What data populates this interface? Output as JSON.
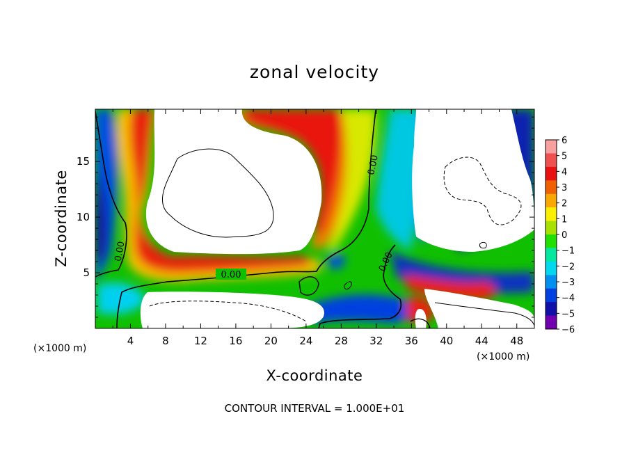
{
  "chart_data": {
    "type": "heatmap",
    "title": "zonal velocity",
    "xlabel": "X-coordinate",
    "ylabel": "Z-coordinate",
    "x_unit": "(×1000 m)",
    "z_unit": "(×1000 m)",
    "xlim": [
      0,
      50
    ],
    "ylim": [
      0,
      19.7
    ],
    "x_ticks": [
      "4",
      "8",
      "12",
      "16",
      "20",
      "24",
      "28",
      "32",
      "36",
      "40",
      "44",
      "48"
    ],
    "y_ticks": [
      "5",
      "10",
      "15"
    ],
    "colorbar": {
      "levels": [
        "6",
        "5",
        "4",
        "3",
        "2",
        "1",
        "0",
        "−1",
        "−2",
        "−3",
        "−4",
        "−5",
        "−6"
      ],
      "colors": [
        "#f8a0a0",
        "#f05050",
        "#e81010",
        "#f06000",
        "#f8a800",
        "#f8f000",
        "#a8e000",
        "#20e000",
        "#00e8a0",
        "#00d8f0",
        "#0090f0",
        "#0040e0",
        "#1010a8",
        "#7000b0"
      ]
    },
    "contour_labels": [
      "0.00",
      "0.00",
      "0.00",
      "0.00"
    ],
    "footer": "CONTOUR INTERVAL = 1.000E+01"
  }
}
